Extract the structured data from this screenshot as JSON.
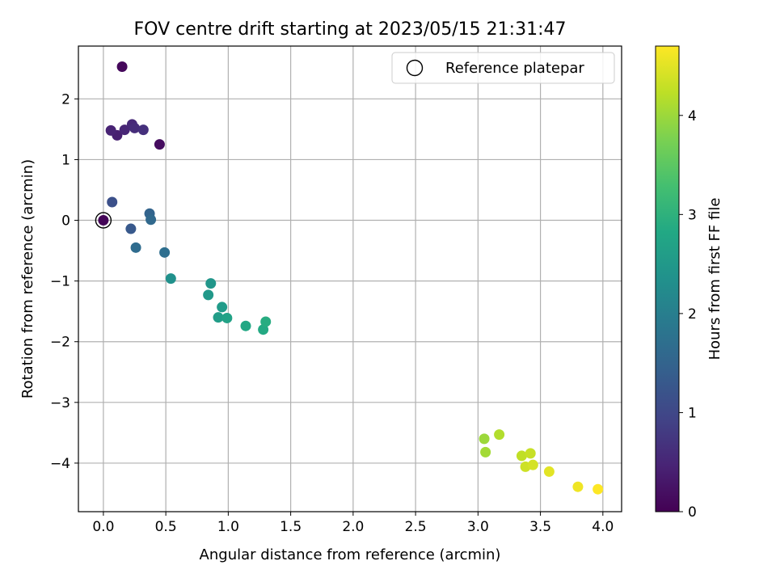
{
  "chart_data": {
    "type": "scatter",
    "title": "FOV centre drift starting at 2023/05/15 21:31:47",
    "xlabel": "Angular distance from reference (arcmin)",
    "ylabel": "Rotation from reference (arcmin)",
    "xlim": [
      -0.2,
      4.15
    ],
    "ylim": [
      -4.8,
      2.87
    ],
    "xticks": [
      0.0,
      0.5,
      1.0,
      1.5,
      2.0,
      2.5,
      3.0,
      3.5,
      4.0
    ],
    "xtick_labels": [
      "0.0",
      "0.5",
      "1.0",
      "1.5",
      "2.0",
      "2.5",
      "3.0",
      "3.5",
      "4.0"
    ],
    "yticks": [
      -4,
      -3,
      -2,
      -1,
      0,
      1,
      2
    ],
    "ytick_labels": [
      "−4",
      "−3",
      "−2",
      "−1",
      "0",
      "1",
      "2"
    ],
    "grid": true,
    "legend": {
      "position": "top-right",
      "entries": [
        "Reference platepar"
      ]
    },
    "colorbar": {
      "label": "Hours from first FF file",
      "min": 0,
      "max": 4.7,
      "ticks": [
        0,
        1,
        2,
        3,
        4
      ],
      "tick_labels": [
        "0",
        "1",
        "2",
        "3",
        "4"
      ],
      "colormap": "viridis"
    },
    "reference_point": {
      "x": 0.0,
      "y": 0.0
    },
    "points": [
      {
        "x": 0.0,
        "y": 0.0,
        "hours": 0.05
      },
      {
        "x": 0.15,
        "y": 2.53,
        "hours": 0.1
      },
      {
        "x": 0.45,
        "y": 1.25,
        "hours": 0.15
      },
      {
        "x": 0.11,
        "y": 1.4,
        "hours": 0.4
      },
      {
        "x": 0.06,
        "y": 1.48,
        "hours": 0.45
      },
      {
        "x": 0.17,
        "y": 1.49,
        "hours": 0.5
      },
      {
        "x": 0.23,
        "y": 1.58,
        "hours": 0.55
      },
      {
        "x": 0.25,
        "y": 1.52,
        "hours": 0.6
      },
      {
        "x": 0.32,
        "y": 1.49,
        "hours": 0.65
      },
      {
        "x": 0.07,
        "y": 0.3,
        "hours": 1.15
      },
      {
        "x": 0.22,
        "y": -0.14,
        "hours": 1.3
      },
      {
        "x": 0.37,
        "y": 0.11,
        "hours": 1.5
      },
      {
        "x": 0.38,
        "y": 0.01,
        "hours": 1.6
      },
      {
        "x": 0.26,
        "y": -0.45,
        "hours": 1.65
      },
      {
        "x": 0.49,
        "y": -0.53,
        "hours": 1.7
      },
      {
        "x": 0.54,
        "y": -0.96,
        "hours": 2.35
      },
      {
        "x": 0.86,
        "y": -1.04,
        "hours": 2.45
      },
      {
        "x": 0.84,
        "y": -1.23,
        "hours": 2.5
      },
      {
        "x": 0.95,
        "y": -1.43,
        "hours": 2.55
      },
      {
        "x": 0.92,
        "y": -1.6,
        "hours": 2.6
      },
      {
        "x": 0.99,
        "y": -1.61,
        "hours": 2.7
      },
      {
        "x": 1.14,
        "y": -1.74,
        "hours": 2.8
      },
      {
        "x": 1.28,
        "y": -1.8,
        "hours": 2.85
      },
      {
        "x": 1.3,
        "y": -1.67,
        "hours": 2.9
      },
      {
        "x": 3.05,
        "y": -3.6,
        "hours": 4.0
      },
      {
        "x": 3.06,
        "y": -3.82,
        "hours": 4.05
      },
      {
        "x": 3.17,
        "y": -3.53,
        "hours": 4.15
      },
      {
        "x": 3.35,
        "y": -3.88,
        "hours": 4.25
      },
      {
        "x": 3.42,
        "y": -3.84,
        "hours": 4.3
      },
      {
        "x": 3.38,
        "y": -4.06,
        "hours": 4.35
      },
      {
        "x": 3.44,
        "y": -4.03,
        "hours": 4.4
      },
      {
        "x": 3.57,
        "y": -4.14,
        "hours": 4.5
      },
      {
        "x": 3.8,
        "y": -4.39,
        "hours": 4.6
      },
      {
        "x": 3.96,
        "y": -4.43,
        "hours": 4.7
      }
    ]
  }
}
